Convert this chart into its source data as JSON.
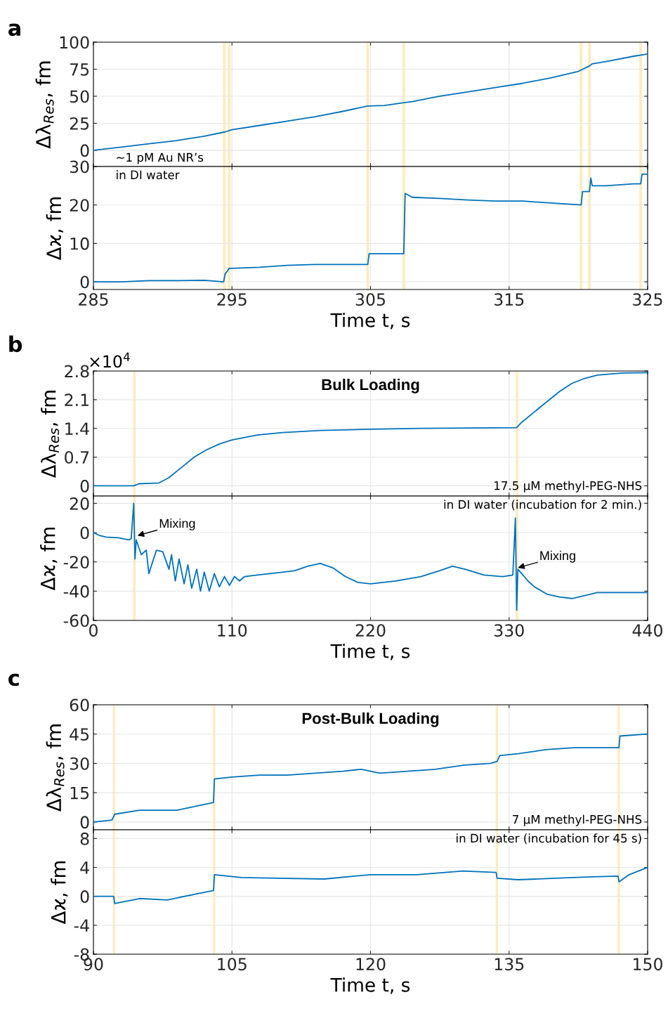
{
  "chart_data": [
    {
      "type": "line",
      "ylabel": "Δλ$_{Res}$, fm",
      "xlim": [
        285,
        325
      ],
      "xticks": [
        285,
        295,
        305,
        315,
        325
      ],
      "ylim": [
        -15,
        100
      ],
      "yticks": [
        0,
        25,
        50,
        75,
        100
      ],
      "tick_labels": "y",
      "grid": true,
      "annotations": [
        "a",
        "∼1 pM Au NR’s"
      ],
      "bands": [
        {
          "axis": "x",
          "from": 294.35,
          "to": 294.55,
          "color": "#fcecc0"
        },
        {
          "axis": "x",
          "from": 294.7,
          "to": 294.9,
          "color": "#fcecc0"
        },
        {
          "axis": "x",
          "from": 304.7,
          "to": 304.9,
          "color": "#fcecc0"
        },
        {
          "axis": "x",
          "from": 307.3,
          "to": 307.5,
          "color": "#fcecc0"
        },
        {
          "axis": "x",
          "from": 320.1,
          "to": 320.3,
          "color": "#fcecc0"
        },
        {
          "axis": "x",
          "from": 320.7,
          "to": 320.9,
          "color": "#fcecc0"
        },
        {
          "axis": "x",
          "from": 324.4,
          "to": 324.6,
          "color": "#fcecc0"
        }
      ],
      "series": [
        {
          "color": "#0072bd",
          "x": [
            285,
            287,
            289,
            291,
            293,
            294.5,
            295,
            297,
            299,
            301,
            303,
            304.8,
            306,
            307.4,
            308,
            310,
            312,
            314,
            316,
            318,
            320,
            320.8,
            321,
            322,
            324,
            325
          ],
          "values": [
            0,
            3,
            6,
            9,
            13,
            17,
            19,
            23,
            27,
            31,
            36,
            41,
            41.5,
            44,
            45,
            50,
            54,
            58,
            62,
            67,
            73,
            78,
            80,
            82,
            87,
            89
          ]
        }
      ]
    },
    {
      "type": "line",
      "ylabel": "Δϰ, fm",
      "xlabel": "Time t, s",
      "xlim": [
        285,
        325
      ],
      "xticks": [
        285,
        295,
        305,
        315,
        325
      ],
      "ylim": [
        -2,
        30
      ],
      "yticks": [
        0,
        10,
        20,
        30
      ],
      "grid": true,
      "annotations": [
        "in DI water"
      ],
      "bands": [
        {
          "axis": "x",
          "from": 294.35,
          "to": 294.55,
          "color": "#fcecc0"
        },
        {
          "axis": "x",
          "from": 294.7,
          "to": 294.9,
          "color": "#fcecc0"
        },
        {
          "axis": "x",
          "from": 304.7,
          "to": 304.9,
          "color": "#fcecc0"
        },
        {
          "axis": "x",
          "from": 307.3,
          "to": 307.5,
          "color": "#fcecc0"
        },
        {
          "axis": "x",
          "from": 320.1,
          "to": 320.3,
          "color": "#fcecc0"
        },
        {
          "axis": "x",
          "from": 320.7,
          "to": 320.9,
          "color": "#fcecc0"
        },
        {
          "axis": "x",
          "from": 324.4,
          "to": 324.6,
          "color": "#fcecc0"
        }
      ],
      "series": [
        {
          "color": "#0072bd",
          "x": [
            285,
            287,
            289,
            291,
            293,
            294.4,
            294.5,
            294.8,
            295,
            297,
            299,
            301,
            303,
            304.8,
            304.9,
            306,
            307.4,
            307.5,
            308,
            310,
            312,
            314,
            316,
            318,
            320.2,
            320.3,
            320.8,
            320.9,
            321,
            322,
            324,
            324.5,
            324.6,
            325
          ],
          "values": [
            0,
            0,
            0.3,
            0.3,
            0.4,
            0,
            2,
            3.5,
            3.5,
            3.8,
            4.3,
            4.5,
            4.5,
            4.5,
            7.3,
            7.3,
            7.3,
            23,
            22,
            21.7,
            21.3,
            21,
            21,
            20.5,
            20,
            23.5,
            23.5,
            27,
            25,
            25,
            25.5,
            25.5,
            28,
            28
          ]
        }
      ]
    },
    {
      "type": "line",
      "title": "Bulk Loading",
      "ylabel": "Δλ$_{Res}$, fm",
      "xlim": [
        0,
        440
      ],
      "xticks": [
        0,
        110,
        220,
        330,
        440
      ],
      "ylim": [
        -0.25,
        2.8
      ],
      "yticks": [
        0,
        0.7,
        1.4,
        2.1,
        2.8
      ],
      "tick_labels": "y",
      "grid": true,
      "annotations": [
        "b",
        "×10$^{4}$",
        "17.5 µM methyl-PEG-NHS"
      ],
      "bands": [
        {
          "axis": "x",
          "from": 31.5,
          "to": 33.5,
          "color": "#fcecc0"
        },
        {
          "axis": "x",
          "from": 335.3,
          "to": 337.3,
          "color": "#fcecc0"
        }
      ],
      "series": [
        {
          "color": "#0072bd",
          "x": [
            0,
            32,
            36,
            45,
            52,
            60,
            70,
            80,
            90,
            100,
            110,
            130,
            150,
            180,
            220,
            260,
            300,
            336,
            340,
            350,
            360,
            370,
            380,
            390,
            400,
            420,
            440
          ],
          "values": [
            0,
            0,
            0.05,
            0.06,
            0.07,
            0.2,
            0.45,
            0.7,
            0.88,
            1.02,
            1.12,
            1.24,
            1.3,
            1.35,
            1.38,
            1.4,
            1.41,
            1.42,
            1.55,
            1.8,
            2.05,
            2.3,
            2.5,
            2.62,
            2.7,
            2.75,
            2.76
          ]
        }
      ]
    },
    {
      "type": "line",
      "ylabel": "Δϰ, fm",
      "xlabel": "Time t, s",
      "xlim": [
        0,
        440
      ],
      "xticks": [
        0,
        110,
        220,
        330,
        440
      ],
      "ylim": [
        -60,
        25
      ],
      "yticks": [
        -60,
        -40,
        -20,
        0,
        20
      ],
      "grid": true,
      "annotations": [
        "in DI water (incubation for 2 min.)",
        {
          "text": "Mixing",
          "x": 35,
          "y": -2
        },
        {
          "text": "Mixing",
          "x": 337,
          "y": -24
        }
      ],
      "bands": [
        {
          "axis": "x",
          "from": 31.5,
          "to": 33.5,
          "color": "#fcecc0"
        },
        {
          "axis": "x",
          "from": 335.3,
          "to": 337.3,
          "color": "#fcecc0"
        }
      ],
      "series": [
        {
          "color": "#0072bd",
          "x": [
            0,
            5,
            10,
            20,
            28,
            30,
            32,
            33,
            34,
            38,
            42,
            44,
            50,
            55,
            60,
            62,
            65,
            68,
            72,
            75,
            78,
            82,
            85,
            88,
            92,
            96,
            100,
            104,
            108,
            112,
            116,
            120,
            130,
            140,
            150,
            160,
            170,
            180,
            190,
            200,
            210,
            220,
            240,
            260,
            275,
            285,
            295,
            310,
            325,
            333,
            335,
            336,
            337,
            340,
            345,
            350,
            360,
            370,
            380,
            390,
            400,
            420,
            440
          ],
          "values": [
            0,
            -2,
            -3,
            -3.5,
            -5,
            -4,
            20,
            -18,
            -5,
            -15,
            -12,
            -28,
            -12,
            -13,
            -25,
            -15,
            -33,
            -18,
            -35,
            -22,
            -38,
            -25,
            -40,
            -27,
            -40,
            -28,
            -37,
            -30,
            -36,
            -30,
            -33,
            -30,
            -29,
            -28,
            -27,
            -26,
            -23,
            -21,
            -24,
            -30,
            -34,
            -35,
            -33,
            -30,
            -26,
            -23,
            -25,
            -29,
            -30,
            -29,
            10,
            -53,
            -25,
            -28,
            -33,
            -37,
            -42,
            -44,
            -45,
            -43,
            -41,
            -41,
            -41
          ]
        }
      ]
    },
    {
      "type": "line",
      "title": "Post-Bulk Loading",
      "ylabel": "Δλ$_{Res}$, fm",
      "xlim": [
        90,
        150
      ],
      "xticks": [
        90,
        105,
        120,
        135,
        150
      ],
      "ylim": [
        -4,
        60
      ],
      "yticks": [
        0,
        15,
        30,
        45,
        60
      ],
      "tick_labels": "y",
      "grid": true,
      "annotations": [
        "c",
        "7 µM methyl-PEG-NHS"
      ],
      "bands": [
        {
          "axis": "x",
          "from": 92.1,
          "to": 92.35,
          "color": "#fcecc0"
        },
        {
          "axis": "x",
          "from": 102.95,
          "to": 103.2,
          "color": "#fcecc0"
        },
        {
          "axis": "x",
          "from": 133.55,
          "to": 133.8,
          "color": "#fcecc0"
        },
        {
          "axis": "x",
          "from": 146.75,
          "to": 147,
          "color": "#fcecc0"
        }
      ],
      "series": [
        {
          "color": "#0072bd",
          "x": [
            90,
            92,
            92.3,
            95,
            97,
            99,
            101,
            103,
            103.1,
            105,
            108,
            111,
            114,
            117,
            119,
            121,
            124,
            127,
            130,
            133,
            133.7,
            134,
            136,
            139,
            142,
            145,
            146.9,
            147,
            150
          ],
          "values": [
            0,
            1,
            4,
            6,
            6,
            6,
            8,
            10,
            22,
            23,
            24,
            24,
            25,
            26,
            27,
            25,
            26,
            27,
            29,
            30,
            31,
            34,
            35,
            37,
            38,
            38,
            38,
            44,
            45
          ]
        }
      ]
    },
    {
      "type": "line",
      "ylabel": "Δϰ, fm",
      "xlabel": "Time t, s",
      "xlim": [
        90,
        150
      ],
      "xticks": [
        90,
        105,
        120,
        135,
        150
      ],
      "ylim": [
        -8,
        9.2
      ],
      "yticks": [
        -8,
        -4,
        0,
        4,
        8
      ],
      "grid": true,
      "annotations": [
        "in DI water (incubation for 45 s)"
      ],
      "bands": [
        {
          "axis": "x",
          "from": 92.1,
          "to": 92.35,
          "color": "#fcecc0"
        },
        {
          "axis": "x",
          "from": 102.95,
          "to": 103.2,
          "color": "#fcecc0"
        },
        {
          "axis": "x",
          "from": 133.55,
          "to": 133.8,
          "color": "#fcecc0"
        },
        {
          "axis": "x",
          "from": 146.75,
          "to": 147,
          "color": "#fcecc0"
        }
      ],
      "series": [
        {
          "color": "#0072bd",
          "x": [
            90,
            92.2,
            92.3,
            95,
            98,
            101,
            103,
            103.1,
            106,
            110,
            115,
            120,
            125,
            130,
            133.6,
            133.7,
            136,
            140,
            144,
            146.8,
            146.9,
            148,
            150
          ],
          "values": [
            0,
            0,
            -1,
            -0.3,
            -0.5,
            0.3,
            0.8,
            3,
            2.6,
            2.5,
            2.4,
            3,
            3,
            3.5,
            3.3,
            2.5,
            2.3,
            2.5,
            2.7,
            2.8,
            2,
            3,
            4
          ]
        }
      ]
    }
  ]
}
